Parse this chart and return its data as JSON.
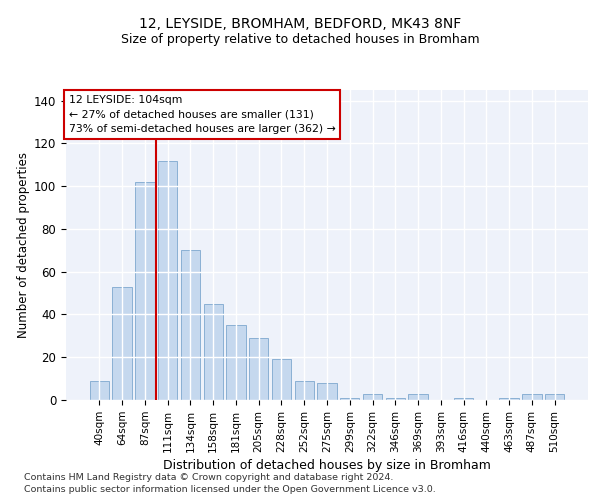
{
  "title": "12, LEYSIDE, BROMHAM, BEDFORD, MK43 8NF",
  "subtitle": "Size of property relative to detached houses in Bromham",
  "xlabel": "Distribution of detached houses by size in Bromham",
  "ylabel": "Number of detached properties",
  "categories": [
    "40sqm",
    "64sqm",
    "87sqm",
    "111sqm",
    "134sqm",
    "158sqm",
    "181sqm",
    "205sqm",
    "228sqm",
    "252sqm",
    "275sqm",
    "299sqm",
    "322sqm",
    "346sqm",
    "369sqm",
    "393sqm",
    "416sqm",
    "440sqm",
    "463sqm",
    "487sqm",
    "510sqm"
  ],
  "values": [
    9,
    53,
    102,
    112,
    70,
    45,
    35,
    29,
    19,
    9,
    8,
    1,
    3,
    1,
    3,
    0,
    1,
    0,
    1,
    3,
    3
  ],
  "bar_color": "#c5d8ee",
  "bar_edge_color": "#8ab0d4",
  "vline_x": 2.5,
  "vline_color": "#cc0000",
  "box_edge_color": "#cc0000",
  "annotation_title": "12 LEYSIDE: 104sqm",
  "annotation_line1": "← 27% of detached houses are smaller (131)",
  "annotation_line2": "73% of semi-detached houses are larger (362) →",
  "ylim": [
    0,
    145
  ],
  "yticks": [
    0,
    20,
    40,
    60,
    80,
    100,
    120,
    140
  ],
  "bg_color": "#eef2fa",
  "grid_color": "#ffffff",
  "footer_line1": "Contains HM Land Registry data © Crown copyright and database right 2024.",
  "footer_line2": "Contains public sector information licensed under the Open Government Licence v3.0."
}
